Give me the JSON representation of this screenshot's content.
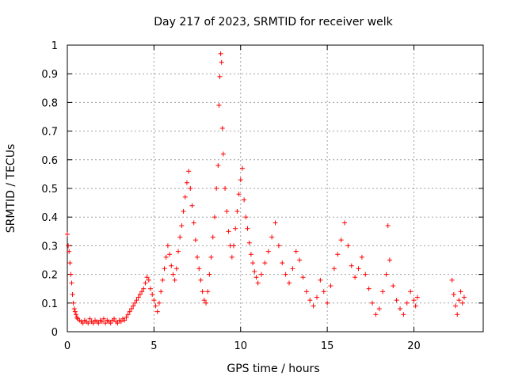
{
  "chart_data": {
    "type": "scatter",
    "title": "Day 217 of 2023, SRMTID for receiver welk",
    "xlabel": "GPS time / hours",
    "ylabel": "SRMTID / TECUs",
    "xlim": [
      0,
      24
    ],
    "ylim": [
      0,
      1
    ],
    "xticks": [
      0,
      5,
      10,
      15,
      20
    ],
    "yticks": [
      0,
      0.1,
      0.2,
      0.3,
      0.4,
      0.5,
      0.6,
      0.7,
      0.8,
      0.9,
      1
    ],
    "xtick_labels": [
      "0",
      "5",
      "10",
      "15",
      "20"
    ],
    "ytick_labels": [
      "0",
      "0.1",
      "0.2",
      "0.3",
      "0.4",
      "0.5",
      "0.6",
      "0.7",
      "0.8",
      "0.9",
      "1"
    ],
    "grid": true,
    "marker": "+",
    "color": "#ff0000",
    "series": [
      {
        "name": "SRMTID",
        "points": [
          [
            0.0,
            0.34
          ],
          [
            0.05,
            0.3
          ],
          [
            0.1,
            0.28
          ],
          [
            0.15,
            0.24
          ],
          [
            0.2,
            0.2
          ],
          [
            0.25,
            0.17
          ],
          [
            0.3,
            0.13
          ],
          [
            0.35,
            0.1
          ],
          [
            0.4,
            0.08
          ],
          [
            0.45,
            0.07
          ],
          [
            0.5,
            0.06
          ],
          [
            0.55,
            0.05
          ],
          [
            0.6,
            0.045
          ],
          [
            0.7,
            0.04
          ],
          [
            0.8,
            0.035
          ],
          [
            0.9,
            0.03
          ],
          [
            1.0,
            0.04
          ],
          [
            1.1,
            0.035
          ],
          [
            1.2,
            0.03
          ],
          [
            1.3,
            0.045
          ],
          [
            1.4,
            0.035
          ],
          [
            1.5,
            0.03
          ],
          [
            1.6,
            0.04
          ],
          [
            1.7,
            0.035
          ],
          [
            1.8,
            0.03
          ],
          [
            1.9,
            0.04
          ],
          [
            2.0,
            0.035
          ],
          [
            2.1,
            0.045
          ],
          [
            2.2,
            0.03
          ],
          [
            2.3,
            0.04
          ],
          [
            2.4,
            0.035
          ],
          [
            2.5,
            0.03
          ],
          [
            2.6,
            0.04
          ],
          [
            2.7,
            0.045
          ],
          [
            2.8,
            0.035
          ],
          [
            2.9,
            0.03
          ],
          [
            3.0,
            0.04
          ],
          [
            3.1,
            0.035
          ],
          [
            3.2,
            0.045
          ],
          [
            3.3,
            0.04
          ],
          [
            3.4,
            0.05
          ],
          [
            3.5,
            0.06
          ],
          [
            3.6,
            0.07
          ],
          [
            3.7,
            0.08
          ],
          [
            3.8,
            0.09
          ],
          [
            3.9,
            0.1
          ],
          [
            4.0,
            0.11
          ],
          [
            4.1,
            0.12
          ],
          [
            4.2,
            0.13
          ],
          [
            4.3,
            0.14
          ],
          [
            4.4,
            0.15
          ],
          [
            4.5,
            0.17
          ],
          [
            4.6,
            0.19
          ],
          [
            4.7,
            0.18
          ],
          [
            4.8,
            0.15
          ],
          [
            4.9,
            0.13
          ],
          [
            5.0,
            0.11
          ],
          [
            5.1,
            0.09
          ],
          [
            5.2,
            0.07
          ],
          [
            5.3,
            0.1
          ],
          [
            5.4,
            0.14
          ],
          [
            5.5,
            0.18
          ],
          [
            5.6,
            0.22
          ],
          [
            5.7,
            0.26
          ],
          [
            5.8,
            0.3
          ],
          [
            5.9,
            0.27
          ],
          [
            6.0,
            0.23
          ],
          [
            6.1,
            0.2
          ],
          [
            6.2,
            0.18
          ],
          [
            6.3,
            0.22
          ],
          [
            6.4,
            0.28
          ],
          [
            6.5,
            0.33
          ],
          [
            6.6,
            0.37
          ],
          [
            6.7,
            0.42
          ],
          [
            6.8,
            0.47
          ],
          [
            6.9,
            0.52
          ],
          [
            7.0,
            0.56
          ],
          [
            7.1,
            0.5
          ],
          [
            7.2,
            0.44
          ],
          [
            7.3,
            0.38
          ],
          [
            7.4,
            0.32
          ],
          [
            7.5,
            0.26
          ],
          [
            7.6,
            0.22
          ],
          [
            7.7,
            0.18
          ],
          [
            7.8,
            0.14
          ],
          [
            7.9,
            0.11
          ],
          [
            8.0,
            0.1
          ],
          [
            8.1,
            0.14
          ],
          [
            8.2,
            0.2
          ],
          [
            8.3,
            0.26
          ],
          [
            8.4,
            0.33
          ],
          [
            8.5,
            0.4
          ],
          [
            8.6,
            0.5
          ],
          [
            8.7,
            0.58
          ],
          [
            8.75,
            0.79
          ],
          [
            8.8,
            0.89
          ],
          [
            8.85,
            0.97
          ],
          [
            8.9,
            0.94
          ],
          [
            8.95,
            0.71
          ],
          [
            9.0,
            0.62
          ],
          [
            9.1,
            0.5
          ],
          [
            9.2,
            0.42
          ],
          [
            9.3,
            0.35
          ],
          [
            9.4,
            0.3
          ],
          [
            9.5,
            0.26
          ],
          [
            9.6,
            0.3
          ],
          [
            9.7,
            0.36
          ],
          [
            9.8,
            0.42
          ],
          [
            9.9,
            0.48
          ],
          [
            10.0,
            0.53
          ],
          [
            10.1,
            0.57
          ],
          [
            10.2,
            0.46
          ],
          [
            10.3,
            0.4
          ],
          [
            10.4,
            0.36
          ],
          [
            10.5,
            0.31
          ],
          [
            10.6,
            0.27
          ],
          [
            10.7,
            0.24
          ],
          [
            10.8,
            0.21
          ],
          [
            10.9,
            0.19
          ],
          [
            11.0,
            0.17
          ],
          [
            11.2,
            0.2
          ],
          [
            11.4,
            0.24
          ],
          [
            11.6,
            0.28
          ],
          [
            11.8,
            0.33
          ],
          [
            12.0,
            0.38
          ],
          [
            12.2,
            0.3
          ],
          [
            12.4,
            0.24
          ],
          [
            12.6,
            0.2
          ],
          [
            12.8,
            0.17
          ],
          [
            13.0,
            0.22
          ],
          [
            13.2,
            0.28
          ],
          [
            13.4,
            0.25
          ],
          [
            13.6,
            0.19
          ],
          [
            13.8,
            0.14
          ],
          [
            14.0,
            0.11
          ],
          [
            14.2,
            0.09
          ],
          [
            14.4,
            0.12
          ],
          [
            14.6,
            0.18
          ],
          [
            14.8,
            0.14
          ],
          [
            15.0,
            0.1
          ],
          [
            15.2,
            0.16
          ],
          [
            15.4,
            0.22
          ],
          [
            15.6,
            0.27
          ],
          [
            15.8,
            0.32
          ],
          [
            16.0,
            0.38
          ],
          [
            16.2,
            0.3
          ],
          [
            16.4,
            0.23
          ],
          [
            16.6,
            0.19
          ],
          [
            16.8,
            0.22
          ],
          [
            17.0,
            0.26
          ],
          [
            17.2,
            0.2
          ],
          [
            17.4,
            0.15
          ],
          [
            17.6,
            0.1
          ],
          [
            17.8,
            0.06
          ],
          [
            18.0,
            0.08
          ],
          [
            18.2,
            0.14
          ],
          [
            18.4,
            0.2
          ],
          [
            18.5,
            0.37
          ],
          [
            18.6,
            0.25
          ],
          [
            18.8,
            0.16
          ],
          [
            19.0,
            0.11
          ],
          [
            19.2,
            0.08
          ],
          [
            19.4,
            0.06
          ],
          [
            19.6,
            0.1
          ],
          [
            19.8,
            0.14
          ],
          [
            20.0,
            0.11
          ],
          [
            20.1,
            0.09
          ],
          [
            20.2,
            0.12
          ],
          [
            22.2,
            0.18
          ],
          [
            22.3,
            0.13
          ],
          [
            22.4,
            0.09
          ],
          [
            22.5,
            0.06
          ],
          [
            22.6,
            0.11
          ],
          [
            22.7,
            0.14
          ],
          [
            22.8,
            0.1
          ],
          [
            22.9,
            0.12
          ]
        ]
      }
    ]
  }
}
